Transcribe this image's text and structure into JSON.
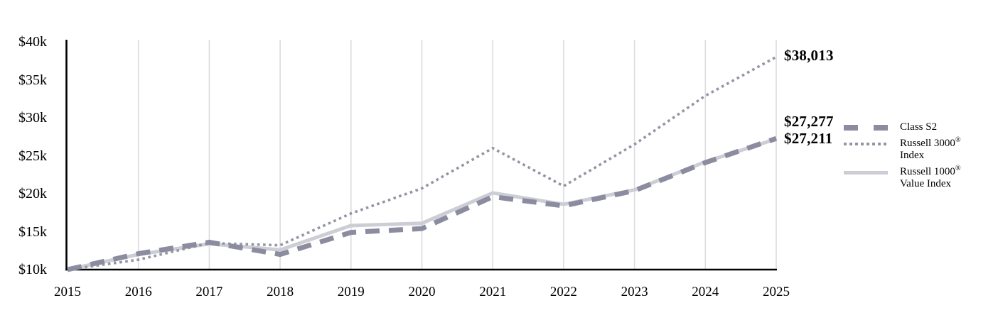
{
  "chart_data": {
    "type": "line",
    "title": "",
    "xlabel": "",
    "ylabel": "",
    "x": [
      2015,
      2016,
      2017,
      2018,
      2019,
      2020,
      2021,
      2022,
      2023,
      2024,
      2025
    ],
    "categories": [
      "2015",
      "2016",
      "2017",
      "2018",
      "2019",
      "2020",
      "2021",
      "2022",
      "2023",
      "2024",
      "2025"
    ],
    "ylim": [
      10000,
      40000
    ],
    "yticks": [
      {
        "value": 10000,
        "label": "$10k"
      },
      {
        "value": 15000,
        "label": "$15k"
      },
      {
        "value": 20000,
        "label": "$20k"
      },
      {
        "value": 25000,
        "label": "$25k"
      },
      {
        "value": 30000,
        "label": "$30k"
      },
      {
        "value": 35000,
        "label": "$35k"
      },
      {
        "value": 40000,
        "label": "$40k"
      }
    ],
    "grid": "vertical-only",
    "legend_position": "right",
    "series": [
      {
        "name": "Russell 1000 Value Index",
        "style": "solid",
        "color": "#cdcdd6",
        "values": [
          10000,
          12000,
          13400,
          12600,
          15800,
          16100,
          20100,
          18600,
          20500,
          24200,
          27211
        ],
        "end_value": 27211
      },
      {
        "name": "Russell 3000 Index",
        "style": "dotted",
        "color": "#9495a4",
        "values": [
          10000,
          11300,
          13500,
          13200,
          17400,
          20700,
          26000,
          21000,
          26500,
          32900,
          38013
        ],
        "end_value": 38013
      },
      {
        "name": "Class S2",
        "style": "dashed",
        "color": "#8c8ca0",
        "values": [
          10000,
          12100,
          13600,
          12000,
          14900,
          15400,
          19600,
          18400,
          20400,
          24100,
          27277
        ],
        "end_value": 27277
      }
    ]
  },
  "end_labels": {
    "top": "$38,013",
    "middle": "$27,277",
    "bottom": "$27,211"
  },
  "legend": {
    "items": [
      {
        "line1": "Class S2",
        "reg": "",
        "line2": ""
      },
      {
        "line1": "Russell 3000",
        "reg": "®",
        "line2": "Index"
      },
      {
        "line1": "Russell 1000",
        "reg": "®",
        "line2": "Value Index"
      }
    ]
  },
  "colors": {
    "axis": "#000000",
    "gridline": "#dcdcdf",
    "class_s2": "#8c8ca0",
    "russell_3000": "#9495a4",
    "russell_1000_value": "#cdcdd6",
    "text": "#000000"
  }
}
